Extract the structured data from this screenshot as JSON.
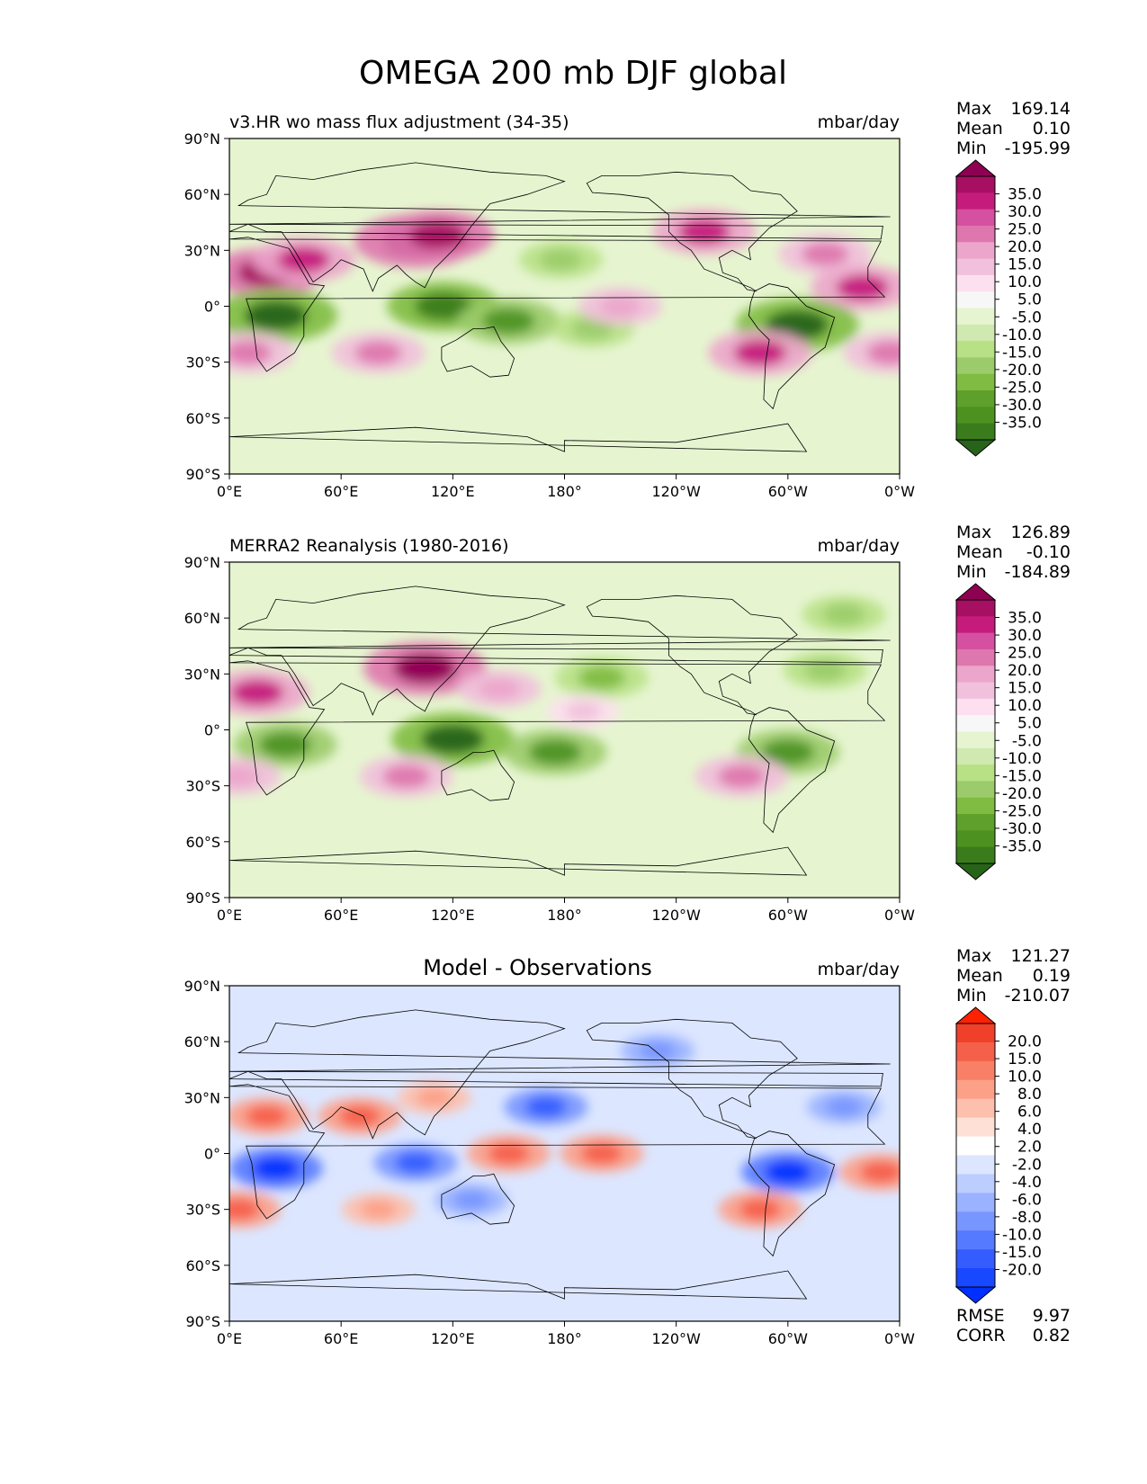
{
  "figure_title": "OMEGA 200 mb DJF global",
  "chart_data": [
    {
      "type": "heatmap",
      "title": "v3.HR wo mass flux adjustment (34-35)",
      "units": "mbar/day",
      "stats": [
        {
          "label": "Max",
          "value": "169.14"
        },
        {
          "label": "Mean",
          "value": "0.10"
        },
        {
          "label": "Min",
          "value": "-195.99"
        }
      ],
      "colorbar": {
        "levels": [
          "35.0",
          "30.0",
          "25.0",
          "20.0",
          "15.0",
          "10.0",
          "5.0",
          "-5.0",
          "-10.0",
          "-15.0",
          "-20.0",
          "-25.0",
          "-30.0",
          "-35.0"
        ],
        "colors": [
          "#8e0152",
          "#a60f62",
          "#c51b7d",
          "#d550a0",
          "#de77ae",
          "#eca5cb",
          "#f1c0dc",
          "#fde0ef",
          "#f7f7f7",
          "#e6f5d0",
          "#cfe9b0",
          "#b8e186",
          "#9bcb6a",
          "#7fbc41",
          "#5ea02b",
          "#4d9221",
          "#3a7c1c",
          "#276419"
        ],
        "extend": "both"
      },
      "xticks": [
        "0°E",
        "60°E",
        "120°E",
        "180°",
        "120°W",
        "60°W",
        "0°W"
      ],
      "yticks": [
        "90°N",
        "60°N",
        "30°N",
        "0°",
        "30°S",
        "60°S",
        "90°S"
      ],
      "xlim": [
        0,
        360
      ],
      "ylim": [
        -90,
        90
      ],
      "features": [
        {
          "lon": 20,
          "lat": 18,
          "value": 30
        },
        {
          "lon": 40,
          "lat": 25,
          "value": 25
        },
        {
          "lon": 100,
          "lat": 35,
          "value": 35
        },
        {
          "lon": 112,
          "lat": 38,
          "value": 30
        },
        {
          "lon": 178,
          "lat": 25,
          "value": -15
        },
        {
          "lon": 255,
          "lat": 40,
          "value": 25
        },
        {
          "lon": 320,
          "lat": 28,
          "value": 20
        },
        {
          "lon": 340,
          "lat": 10,
          "value": 25
        },
        {
          "lon": 25,
          "lat": -5,
          "value": -35
        },
        {
          "lon": 115,
          "lat": 0,
          "value": -30
        },
        {
          "lon": 150,
          "lat": -8,
          "value": -25
        },
        {
          "lon": 195,
          "lat": -12,
          "value": -15
        },
        {
          "lon": 305,
          "lat": -10,
          "value": -35
        },
        {
          "lon": 10,
          "lat": -25,
          "value": 20
        },
        {
          "lon": 80,
          "lat": -25,
          "value": 20
        },
        {
          "lon": 285,
          "lat": -25,
          "value": 25
        },
        {
          "lon": 355,
          "lat": -25,
          "value": 20
        },
        {
          "lon": 210,
          "lat": 0,
          "value": 15
        }
      ]
    },
    {
      "type": "heatmap",
      "title": "MERRA2 Reanalysis (1980-2016)",
      "units": "mbar/day",
      "stats": [
        {
          "label": "Max",
          "value": "126.89"
        },
        {
          "label": "Mean",
          "value": "-0.10"
        },
        {
          "label": "Min",
          "value": "-184.89"
        }
      ],
      "colorbar": {
        "levels": [
          "35.0",
          "30.0",
          "25.0",
          "20.0",
          "15.0",
          "10.0",
          "5.0",
          "-5.0",
          "-10.0",
          "-15.0",
          "-20.0",
          "-25.0",
          "-30.0",
          "-35.0"
        ],
        "colors": [
          "#8e0152",
          "#a60f62",
          "#c51b7d",
          "#d550a0",
          "#de77ae",
          "#eca5cb",
          "#f1c0dc",
          "#fde0ef",
          "#f7f7f7",
          "#e6f5d0",
          "#cfe9b0",
          "#b8e186",
          "#9bcb6a",
          "#7fbc41",
          "#5ea02b",
          "#4d9221",
          "#3a7c1c",
          "#276419"
        ],
        "extend": "both"
      },
      "xticks": [
        "0°E",
        "60°E",
        "120°E",
        "180°",
        "120°W",
        "60°W",
        "0°W"
      ],
      "yticks": [
        "90°N",
        "60°N",
        "30°N",
        "0°",
        "30°S",
        "60°S",
        "90°S"
      ],
      "xlim": [
        0,
        360
      ],
      "ylim": [
        -90,
        90
      ],
      "features": [
        {
          "lon": 15,
          "lat": 20,
          "value": 25
        },
        {
          "lon": 105,
          "lat": 33,
          "value": 35
        },
        {
          "lon": 145,
          "lat": 22,
          "value": 15
        },
        {
          "lon": 200,
          "lat": 28,
          "value": -20
        },
        {
          "lon": 320,
          "lat": 32,
          "value": -15
        },
        {
          "lon": 330,
          "lat": 62,
          "value": -15
        },
        {
          "lon": 30,
          "lat": -8,
          "value": -25
        },
        {
          "lon": 120,
          "lat": -5,
          "value": -35
        },
        {
          "lon": 175,
          "lat": -12,
          "value": -25
        },
        {
          "lon": 300,
          "lat": -12,
          "value": -25
        },
        {
          "lon": 95,
          "lat": -25,
          "value": 20
        },
        {
          "lon": 275,
          "lat": -25,
          "value": 20
        },
        {
          "lon": 5,
          "lat": -25,
          "value": 15
        },
        {
          "lon": 190,
          "lat": 10,
          "value": 10
        }
      ]
    },
    {
      "type": "heatmap",
      "title": "Model - Observations",
      "units": "mbar/day",
      "stats": [
        {
          "label": "Max",
          "value": "121.27"
        },
        {
          "label": "Mean",
          "value": "0.19"
        },
        {
          "label": "Min",
          "value": "-210.07"
        }
      ],
      "colorbar": {
        "levels": [
          "20.0",
          "15.0",
          "10.0",
          "8.0",
          "6.0",
          "4.0",
          "2.0",
          "-2.0",
          "-4.0",
          "-6.0",
          "-8.0",
          "-10.0",
          "-15.0",
          "-20.0"
        ],
        "colors": [
          "#ff2200",
          "#f0402a",
          "#f5604a",
          "#f98066",
          "#fca088",
          "#fdc0ac",
          "#fee0d6",
          "#ffffff",
          "#dce6ff",
          "#bccdff",
          "#9ab2ff",
          "#7896ff",
          "#567aff",
          "#345cff",
          "#1848ff",
          "#0030ff"
        ],
        "extend": "both"
      },
      "metrics": [
        {
          "label": "RMSE",
          "value": "9.97"
        },
        {
          "label": "CORR",
          "value": "0.82"
        }
      ],
      "xticks": [
        "0°E",
        "60°E",
        "120°E",
        "180°",
        "120°W",
        "60°W",
        "0°W"
      ],
      "yticks": [
        "90°N",
        "60°N",
        "30°N",
        "0°",
        "30°S",
        "60°S",
        "90°S"
      ],
      "xlim": [
        0,
        360
      ],
      "ylim": [
        -90,
        90
      ],
      "features": [
        {
          "lon": 20,
          "lat": 20,
          "value": 15
        },
        {
          "lon": 70,
          "lat": 20,
          "value": 15
        },
        {
          "lon": 110,
          "lat": 30,
          "value": 10
        },
        {
          "lon": 170,
          "lat": 25,
          "value": -15
        },
        {
          "lon": 230,
          "lat": 55,
          "value": -10
        },
        {
          "lon": 25,
          "lat": -8,
          "value": -20
        },
        {
          "lon": 100,
          "lat": -5,
          "value": -15
        },
        {
          "lon": 130,
          "lat": -25,
          "value": -10
        },
        {
          "lon": 150,
          "lat": 0,
          "value": 15
        },
        {
          "lon": 200,
          "lat": 0,
          "value": 15
        },
        {
          "lon": 300,
          "lat": -10,
          "value": -20
        },
        {
          "lon": 330,
          "lat": 25,
          "value": -10
        },
        {
          "lon": 350,
          "lat": -10,
          "value": 15
        },
        {
          "lon": 285,
          "lat": -30,
          "value": 15
        },
        {
          "lon": 80,
          "lat": -30,
          "value": 10
        },
        {
          "lon": 5,
          "lat": -30,
          "value": 15
        }
      ]
    }
  ]
}
